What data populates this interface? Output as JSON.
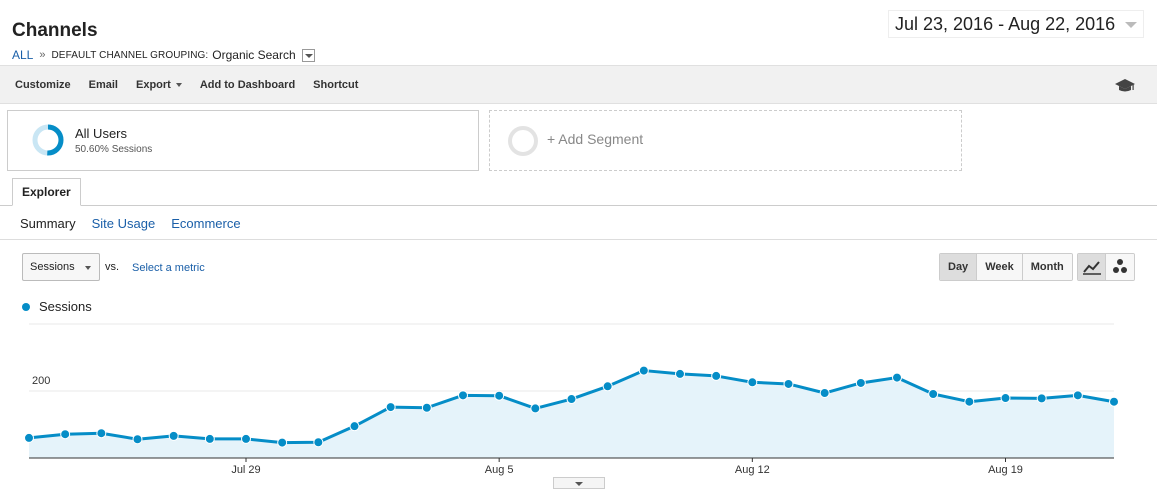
{
  "header": {
    "title": "Channels",
    "breadcrumb_all": "ALL",
    "breadcrumb_sep": "»",
    "grouping_label": "DEFAULT CHANNEL GROUPING:",
    "grouping_value": "Organic Search",
    "date_range": "Jul 23, 2016 - Aug 22, 2016"
  },
  "toolbar": {
    "customize": "Customize",
    "email": "Email",
    "export": "Export",
    "add_to_dashboard": "Add to Dashboard",
    "shortcut": "Shortcut",
    "right_icon": "graduation-cap-icon"
  },
  "segments": {
    "primary": {
      "name": "All Users",
      "detail": "50.60% Sessions",
      "share": 0.506
    },
    "add": "+ Add Segment"
  },
  "tabs": {
    "explorer": "Explorer"
  },
  "subtabs": {
    "summary": "Summary",
    "site_usage": "Site Usage",
    "ecommerce": "Ecommerce"
  },
  "controls": {
    "metric": "Sessions",
    "vs": "vs.",
    "select_metric": "Select a metric",
    "periods": [
      "Day",
      "Week",
      "Month"
    ],
    "active_period": "Day"
  },
  "colors": {
    "series": "#058dc7",
    "area": "#e5f3fa",
    "link": "#1a5fa8"
  },
  "chart_data": {
    "type": "area",
    "series": [
      {
        "name": "Sessions",
        "x": [
          "Jul 23",
          "Jul 24",
          "Jul 25",
          "Jul 26",
          "Jul 27",
          "Jul 28",
          "Jul 29",
          "Jul 30",
          "Jul 31",
          "Aug 1",
          "Aug 2",
          "Aug 3",
          "Aug 4",
          "Aug 5",
          "Aug 6",
          "Aug 7",
          "Aug 8",
          "Aug 9",
          "Aug 10",
          "Aug 11",
          "Aug 12",
          "Aug 13",
          "Aug 14",
          "Aug 15",
          "Aug 16",
          "Aug 17",
          "Aug 18",
          "Aug 19",
          "Aug 20",
          "Aug 21",
          "Aug 22"
        ],
        "values": [
          60,
          71,
          74,
          56,
          66,
          57,
          57,
          46,
          47,
          95,
          152,
          150,
          187,
          186,
          148,
          176,
          214,
          261,
          251,
          245,
          226,
          221,
          194,
          224,
          240,
          191,
          168,
          179,
          178,
          187,
          168
        ]
      }
    ],
    "yticks": [
      200,
      400
    ],
    "ylim": [
      0,
      400
    ],
    "xtick_labels": [
      "Jul 29",
      "Aug 5",
      "Aug 12",
      "Aug 19"
    ],
    "grid": true
  }
}
